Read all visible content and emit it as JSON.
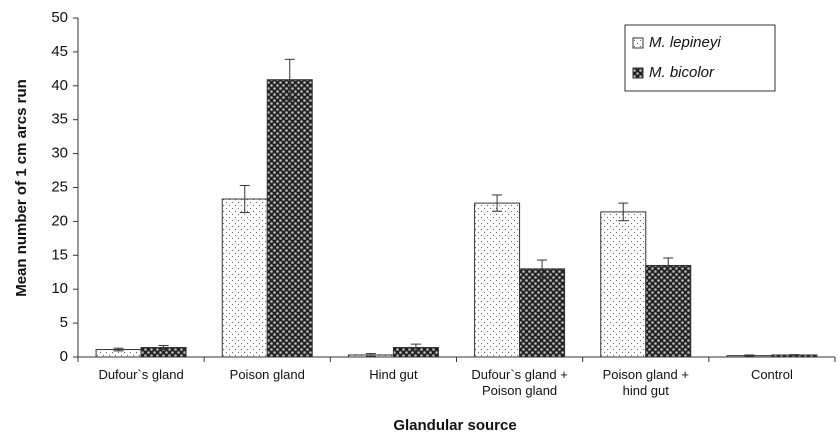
{
  "chart_data": {
    "type": "bar",
    "x_label": "Glandular source",
    "y_label": "Mean number of 1 cm arcs run",
    "categories": [
      "Dufour`s gland",
      "Poison gland",
      "Hind gut",
      "Dufour`s gland + Poison gland",
      "Poison gland + hind gut",
      "Control"
    ],
    "series": [
      {
        "name": "M. lepineyi",
        "color": "#ffffff",
        "values": [
          1.1,
          23.3,
          0.3,
          22.7,
          21.4,
          0.2
        ],
        "errors": [
          0.2,
          2.0,
          0.2,
          1.2,
          1.3,
          0.1
        ]
      },
      {
        "name": "M. bicolor",
        "color": "#333333",
        "values": [
          1.4,
          40.9,
          1.4,
          13.0,
          13.5,
          0.3
        ],
        "errors": [
          0.3,
          3.0,
          0.5,
          1.3,
          1.1,
          0.05
        ]
      }
    ],
    "ylim": [
      0,
      50
    ],
    "yticks": [
      0,
      5,
      10,
      15,
      20,
      25,
      30,
      35,
      40,
      45,
      50
    ],
    "grid": false,
    "legend": "upper right"
  }
}
